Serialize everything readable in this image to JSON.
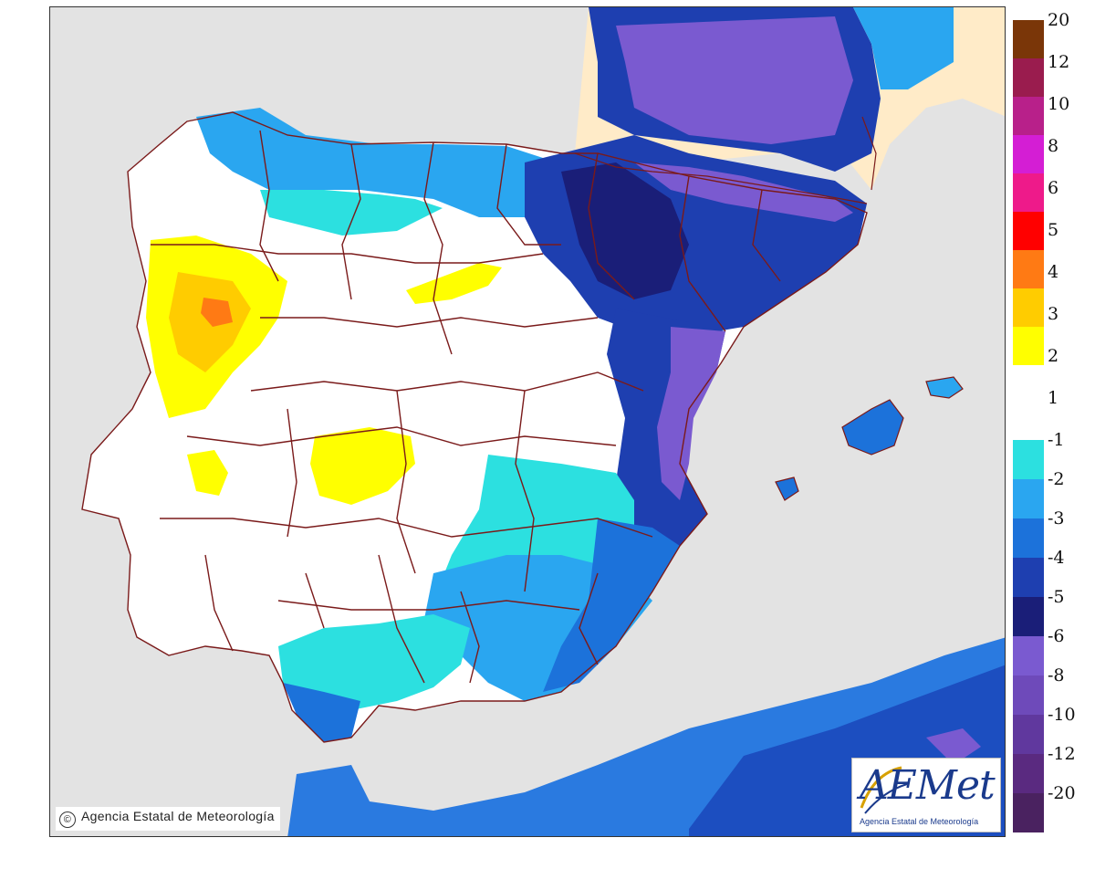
{
  "map": {
    "copyright": "Agencia Estatal de Meteorología",
    "copyright_symbol": "©",
    "logo": {
      "wordmark": "AEMet",
      "subtitle": "Agencia Estatal de Meteorología"
    }
  },
  "legend": {
    "positive": [
      {
        "label": "20",
        "color": "#7a3608"
      },
      {
        "label": "12",
        "color": "#9a1c4e"
      },
      {
        "label": "10",
        "color": "#b8208a"
      },
      {
        "label": "8",
        "color": "#d41ed4"
      },
      {
        "label": "6",
        "color": "#ee1a8a"
      },
      {
        "label": "5",
        "color": "#ff0000"
      },
      {
        "label": "4",
        "color": "#ff7a14"
      },
      {
        "label": "3",
        "color": "#ffcc00"
      },
      {
        "label": "2",
        "color": "#ffff00"
      },
      {
        "label": "1",
        "color": "#ffffff"
      }
    ],
    "negative": [
      {
        "label": "-1",
        "color": "#2ce0e0"
      },
      {
        "label": "-2",
        "color": "#2aa6f0"
      },
      {
        "label": "-3",
        "color": "#1c72da"
      },
      {
        "label": "-4",
        "color": "#1e3fb0"
      },
      {
        "label": "-5",
        "color": "#1a1e78"
      },
      {
        "label": "-6",
        "color": "#7a5ad0"
      },
      {
        "label": "-8",
        "color": "#6e4aba"
      },
      {
        "label": "-10",
        "color": "#60389e"
      },
      {
        "label": "-12",
        "color": "#5a2a80"
      },
      {
        "label": "-20",
        "color": "#4a2260"
      }
    ]
  },
  "colors": {
    "sea": "#e3e3e3",
    "france": "#ffebc8",
    "land_neutral": "#ffffff",
    "borders": "#7a1a1a"
  }
}
